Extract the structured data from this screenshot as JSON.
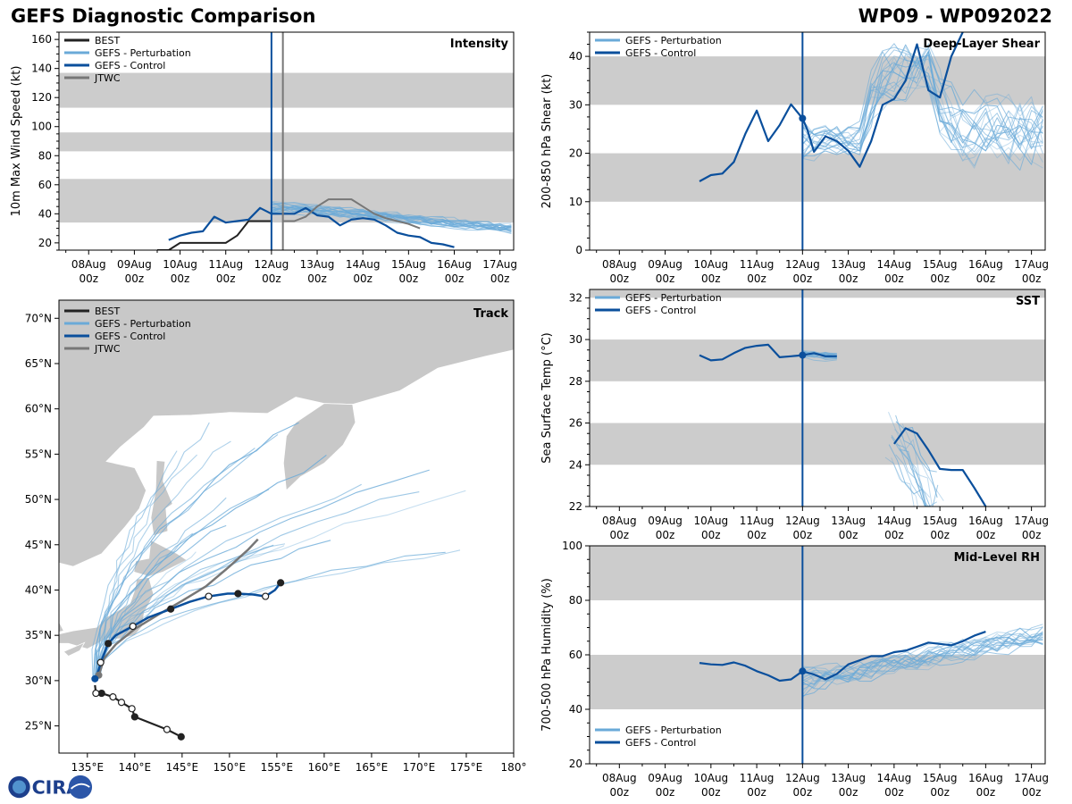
{
  "title_left": "GEFS Diagnostic Comparison",
  "title_right": "WP09 - WP092022",
  "logo_text": "CIRA",
  "colors": {
    "best": "#222222",
    "perturbation": "#6aaad8",
    "control": "#0a4f9c",
    "jtwc": "#777777",
    "band": "#cccccc",
    "land": "#c8c8c8",
    "coast": "#ffffff"
  },
  "time_ticks": [
    {
      "day": 8,
      "label": "08Aug",
      "sub": "00z"
    },
    {
      "day": 9,
      "label": "09Aug",
      "sub": "00z"
    },
    {
      "day": 10,
      "label": "10Aug",
      "sub": "00z"
    },
    {
      "day": 11,
      "label": "11Aug",
      "sub": "00z"
    },
    {
      "day": 12,
      "label": "12Aug",
      "sub": "00z"
    },
    {
      "day": 13,
      "label": "13Aug",
      "sub": "00z"
    },
    {
      "day": 14,
      "label": "14Aug",
      "sub": "00z"
    },
    {
      "day": 15,
      "label": "15Aug",
      "sub": "00z"
    },
    {
      "day": 16,
      "label": "16Aug",
      "sub": "00z"
    },
    {
      "day": 17,
      "label": "17Aug",
      "sub": "00z"
    }
  ],
  "chart_data": [
    {
      "id": "intensity",
      "type": "line",
      "title": "Intensity",
      "ylabel": "10m Max Wind Speed (kt)",
      "xlim": [
        7.35,
        17.3
      ],
      "ylim": [
        15,
        165
      ],
      "yticks": [
        20,
        40,
        60,
        80,
        100,
        120,
        140,
        160
      ],
      "bands": [
        [
          34,
          64
        ],
        [
          83,
          96
        ],
        [
          113,
          137
        ]
      ],
      "vlines": [
        {
          "x": 12.0,
          "series": "control"
        },
        {
          "x": 12.25,
          "series": "jtwc"
        }
      ],
      "legend": [
        "BEST",
        "GEFS - Perturbation",
        "GEFS - Control",
        "JTWC"
      ],
      "series": [
        {
          "name": "BEST",
          "kind": "best",
          "x": [
            9.5,
            9.75,
            10.0,
            10.25,
            10.5,
            10.75,
            11.0,
            11.25,
            11.5,
            11.75,
            12.0
          ],
          "y": [
            15,
            15,
            20,
            20,
            20,
            20,
            20,
            25,
            35,
            35,
            35
          ]
        },
        {
          "name": "GEFS - Control",
          "kind": "control",
          "x": [
            9.75,
            10.0,
            10.25,
            10.5,
            10.75,
            11.0,
            11.25,
            11.5,
            11.75,
            12.0,
            12.25,
            12.5,
            12.75,
            13.0,
            13.25,
            13.5,
            13.75,
            14.0,
            14.25,
            14.5,
            14.75,
            15.0,
            15.25,
            15.5,
            15.75,
            16.0
          ],
          "y": [
            22,
            25,
            27,
            28,
            38,
            34,
            35,
            36,
            44,
            40,
            40,
            40,
            44,
            39,
            38,
            32,
            36,
            37,
            36,
            32,
            27,
            25,
            24,
            20,
            19,
            17
          ]
        },
        {
          "name": "JTWC",
          "kind": "jtwc",
          "x": [
            12.25,
            12.5,
            12.75,
            13.0,
            13.25,
            13.5,
            13.75,
            14.0,
            14.25,
            14.5,
            14.75,
            15.0,
            15.25
          ],
          "y": [
            35,
            35,
            38,
            45,
            50,
            50,
            50,
            45,
            40,
            37,
            35,
            33,
            30
          ]
        }
      ],
      "ensemble_count": 20,
      "ensemble_x": [
        12.0,
        17.3
      ],
      "ensemble_seed": 3
    },
    {
      "id": "shear",
      "type": "line",
      "title": "Deep-Layer Shear",
      "ylabel": "200-850 hPa Shear (kt)",
      "xlim": [
        7.35,
        17.3
      ],
      "ylim": [
        0,
        45
      ],
      "yticks": [
        0,
        10,
        20,
        30,
        40
      ],
      "bands": [
        [
          10,
          20
        ],
        [
          30,
          40
        ]
      ],
      "vlines": [
        {
          "x": 12.0,
          "series": "control"
        }
      ],
      "legend": [
        "GEFS - Perturbation",
        "GEFS - Control"
      ],
      "series": [
        {
          "name": "GEFS - Control",
          "kind": "control",
          "x": [
            9.75,
            10.0,
            10.25,
            10.5,
            10.75,
            11.0,
            11.25,
            11.5,
            11.75,
            12.0,
            12.1,
            12.25,
            12.5,
            12.75,
            13.0,
            13.25,
            13.5,
            13.75,
            14.0,
            14.25,
            14.5,
            14.75,
            15.0,
            15.25,
            15.5,
            15.6
          ],
          "y": [
            14.2,
            15.5,
            15.8,
            18.2,
            24,
            28.8,
            22.5,
            25.8,
            30.1,
            27.2,
            25,
            20.3,
            23.5,
            22.5,
            20.5,
            17.2,
            22.5,
            30,
            31.2,
            35,
            42.5,
            33,
            31.5,
            40,
            45,
            46
          ]
        }
      ],
      "control_marker": {
        "x": 12.0,
        "y": 27.2
      },
      "ensemble_count": 20,
      "ensemble_x": [
        12.0,
        17.3
      ],
      "ensemble_seed": 7
    },
    {
      "id": "track",
      "type": "scatter",
      "title": "Track",
      "xlim": [
        132,
        180
      ],
      "ylim": [
        22,
        72
      ],
      "xtick_labels": [
        {
          "v": 135,
          "t": "135°E"
        },
        {
          "v": 140,
          "t": "140°E"
        },
        {
          "v": 145,
          "t": "145°E"
        },
        {
          "v": 150,
          "t": "150°E"
        },
        {
          "v": 155,
          "t": "155°E"
        },
        {
          "v": 160,
          "t": "160°E"
        },
        {
          "v": 165,
          "t": "165°E"
        },
        {
          "v": 170,
          "t": "170°E"
        },
        {
          "v": 175,
          "t": "175°E"
        },
        {
          "v": 180,
          "t": "180°"
        }
      ],
      "ytick_labels": [
        {
          "v": 25,
          "t": "25°N"
        },
        {
          "v": 30,
          "t": "30°N"
        },
        {
          "v": 35,
          "t": "35°N"
        },
        {
          "v": 40,
          "t": "40°N"
        },
        {
          "v": 45,
          "t": "45°N"
        },
        {
          "v": 50,
          "t": "50°N"
        },
        {
          "v": 55,
          "t": "55°N"
        },
        {
          "v": 60,
          "t": "60°N"
        },
        {
          "v": 65,
          "t": "65°N"
        },
        {
          "v": 70,
          "t": "70°N"
        }
      ],
      "legend": [
        "BEST",
        "GEFS - Perturbation",
        "GEFS - Control",
        "JTWC"
      ],
      "best_track": {
        "lon": [
          144.9,
          143.4,
          140.0,
          139.7,
          138.6,
          137.7,
          136.5,
          135.9,
          135.8
        ],
        "lat": [
          23.8,
          24.6,
          26.0,
          26.9,
          27.6,
          28.2,
          28.6,
          28.6,
          29.5
        ],
        "filled": [
          true,
          false,
          true,
          false,
          false,
          false,
          true,
          false,
          false
        ]
      },
      "control_track": {
        "lon": [
          135.8,
          136.2,
          136.4,
          137.2,
          138.0,
          139.8,
          141.5,
          143.8,
          145.8,
          147.8,
          149.8,
          150.9,
          152.5,
          153.8,
          154.8,
          155.4
        ],
        "lat": [
          30.2,
          31.2,
          32.0,
          34.1,
          35.0,
          36.0,
          37.0,
          37.9,
          38.7,
          39.3,
          39.6,
          39.6,
          39.5,
          39.3,
          40.0,
          40.8
        ],
        "markers": [
          {
            "lon": 136.4,
            "lat": 32.0,
            "filled": false
          },
          {
            "lon": 137.2,
            "lat": 34.1,
            "filled": true
          },
          {
            "lon": 139.8,
            "lat": 36.0,
            "filled": false
          },
          {
            "lon": 143.8,
            "lat": 37.9,
            "filled": true
          },
          {
            "lon": 147.8,
            "lat": 39.3,
            "filled": false
          },
          {
            "lon": 150.9,
            "lat": 39.6,
            "filled": true
          },
          {
            "lon": 153.8,
            "lat": 39.3,
            "filled": false
          },
          {
            "lon": 155.4,
            "lat": 40.8,
            "filled": true
          }
        ]
      },
      "jtwc_track": {
        "lon": [
          136.2,
          136.8,
          138.0,
          140.0,
          142.5,
          145.0,
          147.5,
          150.0,
          152.0,
          153.0
        ],
        "lat": [
          30.6,
          32.5,
          34.0,
          35.7,
          37.3,
          38.8,
          40.4,
          42.6,
          44.5,
          45.6
        ]
      },
      "ensemble_count": 24,
      "ensemble_seed": 11
    },
    {
      "id": "sst",
      "type": "line",
      "title": "SST",
      "ylabel": "Sea Surface Temp (°C)",
      "xlim": [
        7.35,
        17.3
      ],
      "ylim": [
        22,
        32.4
      ],
      "yticks": [
        22,
        24,
        26,
        28,
        30,
        32
      ],
      "bands": [
        [
          24,
          26
        ],
        [
          28,
          30
        ],
        [
          32,
          32.4
        ]
      ],
      "vlines": [
        {
          "x": 12.0,
          "series": "control"
        }
      ],
      "legend": [
        "GEFS - Perturbation",
        "GEFS - Control"
      ],
      "series": [
        {
          "name": "GEFS - Control",
          "kind": "control",
          "x": [
            9.75,
            10.0,
            10.25,
            10.5,
            10.75,
            11.0,
            11.25,
            11.5,
            11.75,
            12.0,
            12.25,
            12.5,
            12.75
          ],
          "y": [
            29.25,
            29.0,
            29.05,
            29.35,
            29.6,
            29.7,
            29.75,
            29.15,
            29.2,
            29.25,
            29.35,
            29.2,
            29.2
          ]
        },
        {
          "name": "GEFS - Control",
          "kind": "control",
          "x": [
            14.0,
            14.25,
            14.5,
            14.75,
            15.0,
            15.25,
            15.5,
            15.75,
            16.0
          ],
          "y": [
            25.0,
            25.75,
            25.5,
            24.7,
            23.8,
            23.75,
            23.75,
            22.9,
            22.0
          ]
        }
      ],
      "control_marker": {
        "x": 12.0,
        "y": 29.25
      },
      "ensemble_count": 14,
      "ensemble_seed": 5
    },
    {
      "id": "rh",
      "type": "line",
      "title": "Mid-Level RH",
      "ylabel": "700-500 hPa Humidity (%)",
      "xlim": [
        7.35,
        17.3
      ],
      "ylim": [
        20,
        100
      ],
      "yticks": [
        20,
        40,
        60,
        80,
        100
      ],
      "bands": [
        [
          40,
          60
        ],
        [
          80,
          100
        ]
      ],
      "vlines": [
        {
          "x": 12.0,
          "series": "control"
        }
      ],
      "legend": [
        "GEFS - Perturbation",
        "GEFS - Control"
      ],
      "series": [
        {
          "name": "GEFS - Control",
          "kind": "control",
          "x": [
            9.75,
            10.0,
            10.25,
            10.5,
            10.75,
            11.0,
            11.25,
            11.5,
            11.75,
            12.0,
            12.25,
            12.5,
            12.75,
            13.0,
            13.25,
            13.5,
            13.75,
            14.0,
            14.25,
            14.5,
            14.75,
            15.0,
            15.25,
            15.5,
            15.75,
            16.0
          ],
          "y": [
            57,
            56.5,
            56.3,
            57.2,
            56,
            54,
            52.5,
            50.5,
            51,
            54,
            52.8,
            51,
            53,
            56.5,
            58,
            59.5,
            59.5,
            61,
            61.5,
            63,
            64.5,
            64,
            63.5,
            65,
            67,
            68.5
          ]
        }
      ],
      "control_marker": {
        "x": 12.0,
        "y": 54
      },
      "ensemble_count": 20,
      "ensemble_seed": 9
    }
  ]
}
